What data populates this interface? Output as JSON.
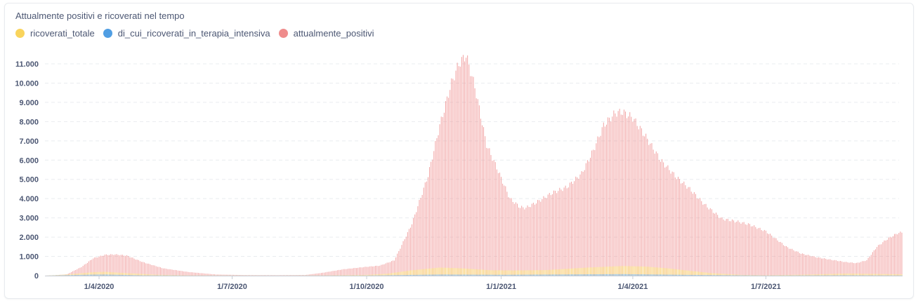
{
  "chart_data": {
    "type": "bar",
    "title": "Attualmente positivi e ricoverati nel tempo",
    "xlabel": "",
    "ylabel": "",
    "x_start": "2020-02-24",
    "x_end": "2021-10-02",
    "ylim": [
      0,
      11500
    ],
    "y_ticks": [
      0,
      1000,
      2000,
      3000,
      4000,
      5000,
      6000,
      7000,
      8000,
      9000,
      10000,
      11000
    ],
    "y_tick_labels": [
      "0",
      "1.000",
      "2.000",
      "3.000",
      "4.000",
      "5.000",
      "6.000",
      "7.000",
      "8.000",
      "9.000",
      "10.000",
      "11.000"
    ],
    "x_tick_labels": [
      {
        "date": "2020-04-01",
        "label": "1/4/2020"
      },
      {
        "date": "2020-07-01",
        "label": "1/7/2020"
      },
      {
        "date": "2020-10-01",
        "label": "1/10/2020"
      },
      {
        "date": "2021-01-01",
        "label": "1/1/2021"
      },
      {
        "date": "2021-04-01",
        "label": "1/4/2021"
      },
      {
        "date": "2021-07-01",
        "label": "1/7/2021"
      }
    ],
    "grid": true,
    "legend_position": "top-left",
    "series": [
      {
        "name": "ricoverati_totale",
        "color": "#f9d45c",
        "keypoints": [
          [
            "2020-02-24",
            0
          ],
          [
            "2020-03-10",
            60
          ],
          [
            "2020-03-28",
            180
          ],
          [
            "2020-04-05",
            200
          ],
          [
            "2020-04-20",
            130
          ],
          [
            "2020-05-10",
            50
          ],
          [
            "2020-06-01",
            15
          ],
          [
            "2020-08-01",
            5
          ],
          [
            "2020-09-01",
            15
          ],
          [
            "2020-10-01",
            40
          ],
          [
            "2020-10-15",
            100
          ],
          [
            "2020-11-01",
            280
          ],
          [
            "2020-11-20",
            420
          ],
          [
            "2020-12-05",
            380
          ],
          [
            "2020-12-25",
            280
          ],
          [
            "2021-01-10",
            270
          ],
          [
            "2021-02-01",
            290
          ],
          [
            "2021-03-01",
            420
          ],
          [
            "2021-03-25",
            500
          ],
          [
            "2021-04-10",
            470
          ],
          [
            "2021-04-25",
            380
          ],
          [
            "2021-05-10",
            250
          ],
          [
            "2021-05-25",
            130
          ],
          [
            "2021-06-15",
            40
          ],
          [
            "2021-07-01",
            20
          ],
          [
            "2021-08-01",
            60
          ],
          [
            "2021-08-25",
            110
          ],
          [
            "2021-10-02",
            70
          ]
        ]
      },
      {
        "name": "di_cui_ricoverati_in_terapia_intensiva",
        "color": "#509ee3",
        "keypoints": [
          [
            "2020-02-24",
            0
          ],
          [
            "2020-03-28",
            55
          ],
          [
            "2020-04-05",
            60
          ],
          [
            "2020-05-01",
            15
          ],
          [
            "2020-06-01",
            3
          ],
          [
            "2020-10-01",
            5
          ],
          [
            "2020-11-20",
            60
          ],
          [
            "2021-01-01",
            45
          ],
          [
            "2021-03-25",
            80
          ],
          [
            "2021-05-10",
            40
          ],
          [
            "2021-07-01",
            5
          ],
          [
            "2021-08-25",
            20
          ],
          [
            "2021-10-02",
            10
          ]
        ]
      },
      {
        "name": "attualmente_positivi",
        "color": "#ef8c8c",
        "keypoints": [
          [
            "2020-02-24",
            0
          ],
          [
            "2020-03-01",
            15
          ],
          [
            "2020-03-10",
            70
          ],
          [
            "2020-03-20",
            450
          ],
          [
            "2020-03-28",
            900
          ],
          [
            "2020-04-05",
            1080
          ],
          [
            "2020-04-12",
            1100
          ],
          [
            "2020-04-20",
            1040
          ],
          [
            "2020-05-01",
            700
          ],
          [
            "2020-05-15",
            380
          ],
          [
            "2020-06-01",
            190
          ],
          [
            "2020-06-20",
            60
          ],
          [
            "2020-07-10",
            30
          ],
          [
            "2020-08-01",
            25
          ],
          [
            "2020-08-20",
            35
          ],
          [
            "2020-09-01",
            150
          ],
          [
            "2020-09-15",
            330
          ],
          [
            "2020-10-01",
            460
          ],
          [
            "2020-10-10",
            520
          ],
          [
            "2020-10-20",
            800
          ],
          [
            "2020-11-01",
            2700
          ],
          [
            "2020-11-12",
            5200
          ],
          [
            "2020-11-20",
            7800
          ],
          [
            "2020-11-28",
            10000
          ],
          [
            "2020-12-03",
            11000
          ],
          [
            "2020-12-08",
            11450
          ],
          [
            "2020-12-14",
            9800
          ],
          [
            "2020-12-22",
            6800
          ],
          [
            "2020-12-29",
            5600
          ],
          [
            "2021-01-07",
            4000
          ],
          [
            "2021-01-14",
            3550
          ],
          [
            "2021-01-18",
            3520
          ],
          [
            "2021-01-25",
            3800
          ],
          [
            "2021-02-05",
            4300
          ],
          [
            "2021-02-15",
            4600
          ],
          [
            "2021-02-25",
            5300
          ],
          [
            "2021-03-05",
            6500
          ],
          [
            "2021-03-12",
            7800
          ],
          [
            "2021-03-20",
            8450
          ],
          [
            "2021-03-25",
            8500
          ],
          [
            "2021-04-01",
            8200
          ],
          [
            "2021-04-10",
            7200
          ],
          [
            "2021-04-20",
            6000
          ],
          [
            "2021-05-01",
            5100
          ],
          [
            "2021-05-10",
            4500
          ],
          [
            "2021-05-20",
            3700
          ],
          [
            "2021-06-01",
            2950
          ],
          [
            "2021-06-12",
            2800
          ],
          [
            "2021-06-20",
            2650
          ],
          [
            "2021-07-01",
            2300
          ],
          [
            "2021-07-15",
            1500
          ],
          [
            "2021-07-25",
            1150
          ],
          [
            "2021-08-05",
            950
          ],
          [
            "2021-08-15",
            820
          ],
          [
            "2021-08-25",
            700
          ],
          [
            "2021-09-01",
            650
          ],
          [
            "2021-09-08",
            800
          ],
          [
            "2021-09-15",
            1500
          ],
          [
            "2021-09-22",
            1900
          ],
          [
            "2021-09-29",
            2200
          ],
          [
            "2021-10-02",
            2250
          ]
        ]
      }
    ]
  }
}
